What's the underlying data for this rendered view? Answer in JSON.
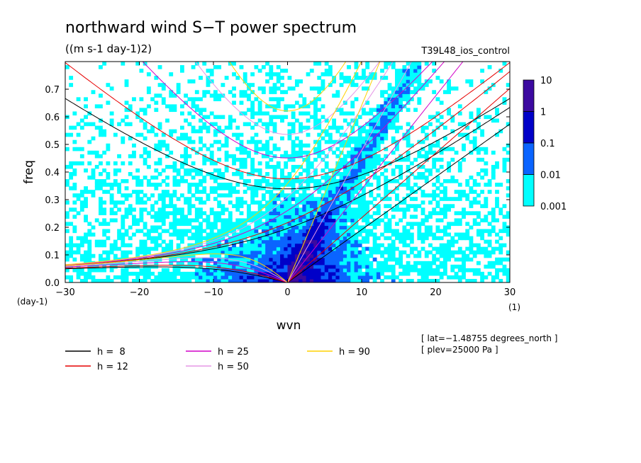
{
  "chart_data": {
    "type": "heatmap",
    "title": "northward wind S−T power spectrum",
    "subtitle": "((m s-1 day-1)2)",
    "experiment": "T39L48_ios_control",
    "xlabel": "wvn",
    "ylabel": "freq",
    "x_unit": "(1)",
    "y_unit": "(day-1)",
    "xlim": [
      -30,
      30
    ],
    "ylim": [
      0,
      0.8
    ],
    "x_ticks": [
      -30,
      -20,
      -10,
      0,
      10,
      20,
      30
    ],
    "x_tick_labels": [
      "−30",
      "−20",
      "−10",
      "0",
      "10",
      "20",
      "30"
    ],
    "y_ticks": [
      0.0,
      0.1,
      0.2,
      0.3,
      0.4,
      0.5,
      0.6,
      0.7
    ],
    "y_tick_labels": [
      "0.0",
      "0.1",
      "0.2",
      "0.3",
      "0.4",
      "0.5",
      "0.6",
      "0.7"
    ],
    "colorbar": {
      "levels": [
        0.001,
        0.01,
        0.1,
        1,
        10
      ],
      "labels": [
        "0.001",
        "0.01",
        "0.1",
        "1",
        "10"
      ],
      "colors": [
        "#00ffff",
        "#0a64ff",
        "#0000c8",
        "#3c0aa0"
      ]
    },
    "background_color": "#ffffff",
    "dispersion_curves": [
      {
        "name": "h =  8",
        "h": 8,
        "color": "#000000"
      },
      {
        "name": "h = 12",
        "h": 12,
        "color": "#e60000"
      },
      {
        "name": "h = 25",
        "h": 25,
        "color": "#d200c8"
      },
      {
        "name": "h = 50",
        "h": 50,
        "color": "#e696e6"
      },
      {
        "name": "h = 90",
        "h": 90,
        "color": "#ffd200"
      }
    ],
    "annotations": [
      "[ lat=−1.48755 degrees_north ]",
      "[ plev=25000 Pa ]"
    ]
  }
}
